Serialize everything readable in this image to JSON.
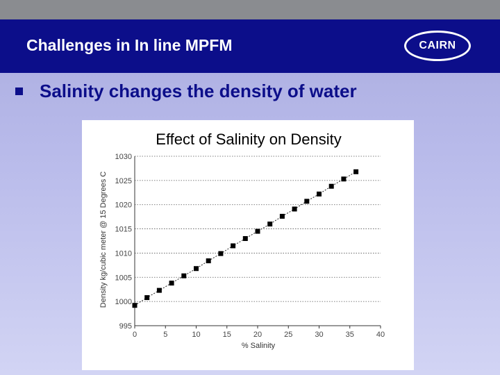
{
  "header": {
    "title": "Challenges in In line MPFM",
    "logo_text": "CAIRN"
  },
  "bullet": {
    "text": "Salinity changes the density of water"
  },
  "colors": {
    "header_bg": "#0c0e8a",
    "accent_text": "#0c0e8a",
    "background": "#b8baea"
  },
  "chart_data": {
    "type": "scatter",
    "title": "Effect of Salinity on Density",
    "xlabel": "% Salinity",
    "ylabel": "Density    kg/cubic meter @ 15 Degrees C",
    "xlim": [
      0,
      40
    ],
    "ylim": [
      995,
      1030
    ],
    "x_ticks": [
      "0",
      "5",
      "10",
      "15",
      "20",
      "25",
      "30",
      "35",
      "40"
    ],
    "y_ticks": [
      "995",
      "1000",
      "1005",
      "1010",
      "1015",
      "1020",
      "1025",
      "1030"
    ],
    "grid": "horizontal dotted",
    "trend_line": "dotted",
    "series": [
      {
        "x": [
          0,
          2,
          4,
          6,
          8,
          10,
          12,
          14,
          16,
          18,
          20,
          22,
          24,
          26,
          28,
          30,
          32,
          34,
          36
        ],
        "y": [
          999.2,
          1000.8,
          1002.3,
          1003.8,
          1005.3,
          1006.8,
          1008.4,
          1009.9,
          1011.5,
          1013.0,
          1014.5,
          1016.0,
          1017.6,
          1019.1,
          1020.7,
          1022.2,
          1023.8,
          1025.3,
          1026.8
        ]
      }
    ]
  }
}
